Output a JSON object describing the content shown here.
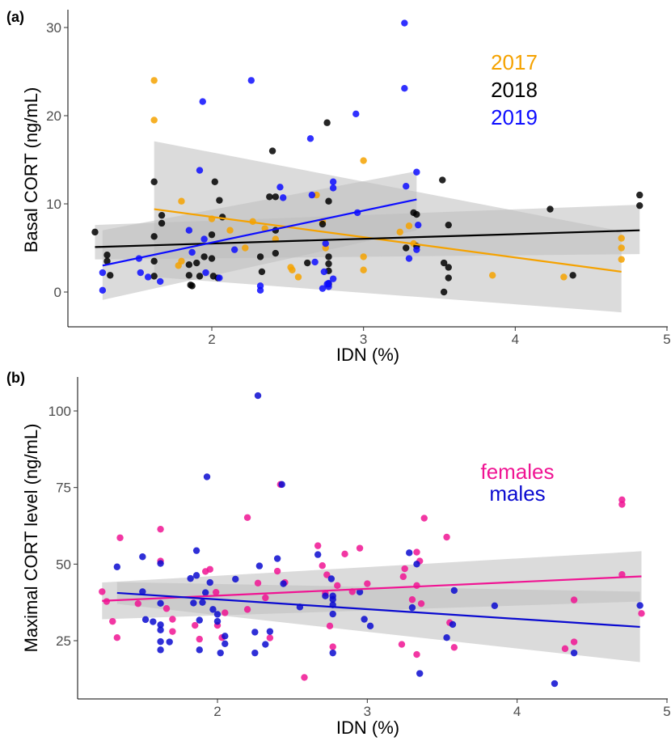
{
  "colors": {
    "y2017": "#f5a200",
    "y2018": "#000000",
    "y2019": "#0d0dff",
    "females": "#f01493",
    "males": "#0a0ad0",
    "ribbon": "#bdbdbd"
  },
  "chart_data": [
    {
      "type": "scatter",
      "panel_label": "(a)",
      "xlabel": "IDN (%)",
      "ylabel": "Basal CORT (ng/mL)",
      "xlim": [
        1.15,
        5.0
      ],
      "ylim": [
        -4,
        32
      ],
      "x_ticks": [
        2,
        3,
        4,
        5
      ],
      "y_ticks": [
        0,
        10,
        20,
        30
      ],
      "grid": false,
      "legend_position": "top-right",
      "series": [
        {
          "name": "2017",
          "color_key": "y2017",
          "points": [
            [
              1.62,
              24.0
            ],
            [
              1.62,
              19.5
            ],
            [
              1.8,
              10.3
            ],
            [
              1.8,
              3.5
            ],
            [
              1.78,
              3.0
            ],
            [
              2.0,
              8.3
            ],
            [
              2.12,
              7.0
            ],
            [
              2.22,
              5.0
            ],
            [
              2.27,
              8.0
            ],
            [
              2.35,
              7.2
            ],
            [
              2.42,
              6.0
            ],
            [
              2.52,
              2.8
            ],
            [
              2.53,
              2.5
            ],
            [
              2.57,
              1.7
            ],
            [
              2.69,
              11.0
            ],
            [
              2.73,
              8.0
            ],
            [
              2.75,
              5.0
            ],
            [
              3.0,
              14.9
            ],
            [
              3.0,
              4.0
            ],
            [
              3.0,
              2.5
            ],
            [
              3.24,
              6.8
            ],
            [
              3.3,
              7.5
            ],
            [
              3.33,
              5.5
            ],
            [
              3.85,
              1.9
            ],
            [
              4.32,
              1.7
            ],
            [
              4.7,
              6.1
            ],
            [
              4.7,
              5.0
            ],
            [
              4.7,
              3.7
            ]
          ],
          "fit": {
            "x0": 1.62,
            "y0": 9.4,
            "x1": 4.7,
            "y1": 2.3,
            "ci_lower0": 1.7,
            "ci_upper0": 17.1,
            "ci_lower1": -2.3,
            "ci_upper1": 6.9
          }
        },
        {
          "name": "2018",
          "color_key": "y2018",
          "points": [
            [
              1.23,
              6.8
            ],
            [
              1.31,
              4.2
            ],
            [
              1.31,
              3.5
            ],
            [
              1.33,
              1.9
            ],
            [
              1.62,
              12.5
            ],
            [
              1.62,
              6.3
            ],
            [
              1.62,
              3.5
            ],
            [
              1.62,
              1.8
            ],
            [
              1.67,
              8.7
            ],
            [
              1.67,
              7.8
            ],
            [
              1.85,
              3.1
            ],
            [
              1.85,
              1.9
            ],
            [
              1.86,
              0.8
            ],
            [
              1.87,
              0.7
            ],
            [
              1.9,
              3.3
            ],
            [
              1.92,
              1.8
            ],
            [
              1.95,
              4.0
            ],
            [
              2.0,
              6.5
            ],
            [
              2.0,
              3.8
            ],
            [
              2.01,
              1.8
            ],
            [
              2.02,
              12.5
            ],
            [
              2.04,
              1.6
            ],
            [
              2.05,
              10.4
            ],
            [
              2.07,
              8.5
            ],
            [
              2.32,
              4.0
            ],
            [
              2.33,
              2.3
            ],
            [
              2.38,
              10.8
            ],
            [
              2.4,
              16.0
            ],
            [
              2.42,
              10.8
            ],
            [
              2.42,
              7.0
            ],
            [
              2.42,
              4.4
            ],
            [
              2.63,
              3.3
            ],
            [
              2.73,
              7.7
            ],
            [
              2.76,
              19.2
            ],
            [
              2.77,
              10.3
            ],
            [
              2.77,
              4.0
            ],
            [
              2.77,
              3.2
            ],
            [
              2.77,
              2.4
            ],
            [
              2.77,
              0.9
            ],
            [
              3.28,
              5.0
            ],
            [
              3.33,
              9.0
            ],
            [
              3.35,
              8.8
            ],
            [
              3.35,
              5.2
            ],
            [
              3.52,
              12.7
            ],
            [
              3.53,
              3.3
            ],
            [
              3.53,
              0.0
            ],
            [
              3.56,
              7.6
            ],
            [
              3.56,
              2.8
            ],
            [
              3.56,
              1.6
            ],
            [
              4.23,
              9.4
            ],
            [
              4.38,
              1.9
            ],
            [
              4.82,
              11.0
            ],
            [
              4.82,
              9.8
            ]
          ],
          "fit": {
            "x0": 1.23,
            "y0": 5.1,
            "x1": 4.82,
            "y1": 7.0,
            "ci_lower0": 3.7,
            "ci_upper0": 7.6,
            "ci_lower1": 4.3,
            "ci_upper1": 9.9
          }
        },
        {
          "name": "2019",
          "color_key": "y2019",
          "points": [
            [
              1.28,
              2.2
            ],
            [
              1.28,
              0.2
            ],
            [
              1.52,
              3.8
            ],
            [
              1.53,
              2.2
            ],
            [
              1.58,
              1.7
            ],
            [
              1.66,
              1.2
            ],
            [
              1.85,
              7.0
            ],
            [
              1.87,
              4.5
            ],
            [
              1.92,
              13.8
            ],
            [
              1.94,
              21.6
            ],
            [
              1.95,
              6.0
            ],
            [
              1.96,
              2.2
            ],
            [
              2.05,
              1.6
            ],
            [
              2.15,
              4.8
            ],
            [
              2.26,
              24.0
            ],
            [
              2.32,
              0.7
            ],
            [
              2.32,
              0.2
            ],
            [
              2.45,
              11.9
            ],
            [
              2.47,
              10.7
            ],
            [
              2.65,
              17.4
            ],
            [
              2.66,
              11.0
            ],
            [
              2.68,
              3.4
            ],
            [
              2.73,
              0.4
            ],
            [
              2.74,
              2.3
            ],
            [
              2.76,
              0.9
            ],
            [
              2.77,
              0.6
            ],
            [
              2.77,
              1.0
            ],
            [
              2.8,
              1.5
            ],
            [
              2.8,
              12.5
            ],
            [
              2.8,
              11.8
            ],
            [
              2.95,
              20.2
            ],
            [
              2.96,
              9.0
            ],
            [
              3.27,
              30.5
            ],
            [
              3.27,
              23.1
            ],
            [
              3.28,
              12.0
            ],
            [
              3.3,
              3.8
            ],
            [
              3.35,
              13.6
            ],
            [
              3.35,
              4.8
            ],
            [
              3.36,
              7.6
            ],
            [
              2.75,
              5.5
            ]
          ],
          "fit": {
            "x0": 1.28,
            "y0": 3.0,
            "x1": 3.35,
            "y1": 10.5,
            "ci_lower0": -0.9,
            "ci_upper0": 7.0,
            "ci_lower1": 7.0,
            "ci_upper1": 13.7
          }
        }
      ]
    },
    {
      "type": "scatter",
      "panel_label": "(b)",
      "xlabel": "IDN (%)",
      "ylabel": "Maximal CORT level (ng/mL)",
      "xlim": [
        1.15,
        5.0
      ],
      "ylim": [
        7,
        109
      ],
      "x_ticks": [
        2,
        3,
        4,
        5
      ],
      "y_ticks": [
        25,
        50,
        75,
        100
      ],
      "grid": false,
      "legend_position": "top-right",
      "series": [
        {
          "name": "females",
          "color_key": "females",
          "points": [
            [
              1.23,
              41.0
            ],
            [
              1.26,
              37.8
            ],
            [
              1.3,
              31.3
            ],
            [
              1.33,
              26.0
            ],
            [
              1.35,
              58.6
            ],
            [
              1.47,
              37.1
            ],
            [
              1.62,
              61.4
            ],
            [
              1.62,
              51.0
            ],
            [
              1.66,
              35.5
            ],
            [
              1.7,
              32.0
            ],
            [
              1.7,
              28.0
            ],
            [
              1.85,
              30.0
            ],
            [
              1.88,
              25.5
            ],
            [
              1.92,
              47.6
            ],
            [
              1.95,
              48.3
            ],
            [
              1.99,
              40.8
            ],
            [
              2.0,
              30.0
            ],
            [
              2.03,
              26.0
            ],
            [
              2.05,
              34.1
            ],
            [
              2.2,
              65.2
            ],
            [
              2.2,
              35.2
            ],
            [
              2.27,
              43.8
            ],
            [
              2.32,
              39.0
            ],
            [
              2.35,
              25.9
            ],
            [
              2.4,
              47.7
            ],
            [
              2.42,
              76.0
            ],
            [
              2.45,
              44.0
            ],
            [
              2.58,
              13.0
            ],
            [
              2.67,
              56.0
            ],
            [
              2.7,
              49.5
            ],
            [
              2.72,
              40.5
            ],
            [
              2.73,
              46.5
            ],
            [
              2.75,
              29.8
            ],
            [
              2.77,
              23.0
            ],
            [
              2.8,
              43.0
            ],
            [
              2.85,
              53.3
            ],
            [
              2.9,
              41.0
            ],
            [
              2.95,
              55.2
            ],
            [
              3.0,
              43.6
            ],
            [
              3.23,
              23.8
            ],
            [
              3.24,
              45.9
            ],
            [
              3.25,
              48.5
            ],
            [
              3.3,
              38.4
            ],
            [
              3.33,
              53.9
            ],
            [
              3.33,
              43.0
            ],
            [
              3.35,
              51.0
            ],
            [
              3.36,
              37.1
            ],
            [
              3.38,
              65.0
            ],
            [
              3.33,
              20.5
            ],
            [
              3.53,
              58.8
            ],
            [
              3.55,
              30.9
            ],
            [
              3.58,
              22.8
            ],
            [
              4.32,
              22.4
            ],
            [
              4.38,
              38.3
            ],
            [
              4.38,
              24.6
            ],
            [
              4.7,
              71.0
            ],
            [
              4.7,
              69.5
            ],
            [
              4.7,
              46.6
            ],
            [
              4.83,
              33.9
            ]
          ],
          "fit": {
            "x0": 1.23,
            "y0": 38.0,
            "x1": 4.83,
            "y1": 46.0,
            "ci_lower0": 32.0,
            "ci_upper0": 44.0,
            "ci_lower1": 37.8,
            "ci_upper1": 54.2
          }
        },
        {
          "name": "males",
          "color_key": "males",
          "points": [
            [
              1.33,
              49.1
            ],
            [
              1.5,
              52.4
            ],
            [
              1.5,
              41.0
            ],
            [
              1.52,
              31.9
            ],
            [
              1.57,
              31.2
            ],
            [
              1.62,
              50.2
            ],
            [
              1.62,
              37.2
            ],
            [
              1.62,
              30.2
            ],
            [
              1.62,
              28.5
            ],
            [
              1.62,
              24.7
            ],
            [
              1.62,
              22.0
            ],
            [
              1.68,
              24.6
            ],
            [
              1.82,
              45.3
            ],
            [
              1.84,
              37.3
            ],
            [
              1.86,
              46.3
            ],
            [
              1.86,
              54.4
            ],
            [
              1.88,
              22.0
            ],
            [
              1.88,
              31.7
            ],
            [
              1.9,
              37.5
            ],
            [
              1.92,
              40.7
            ],
            [
              1.93,
              78.5
            ],
            [
              1.95,
              44.0
            ],
            [
              1.97,
              35.2
            ],
            [
              2.0,
              31.3
            ],
            [
              2.0,
              33.6
            ],
            [
              2.02,
              21.0
            ],
            [
              2.05,
              24.0
            ],
            [
              2.05,
              26.5
            ],
            [
              2.12,
              45.1
            ],
            [
              2.25,
              21.0
            ],
            [
              2.25,
              27.8
            ],
            [
              2.27,
              105.0
            ],
            [
              2.28,
              49.4
            ],
            [
              2.32,
              23.8
            ],
            [
              2.35,
              28.0
            ],
            [
              2.4,
              51.8
            ],
            [
              2.43,
              76.0
            ],
            [
              2.44,
              43.6
            ],
            [
              2.55,
              36.0
            ],
            [
              2.67,
              53.1
            ],
            [
              2.72,
              39.6
            ],
            [
              2.76,
              45.2
            ],
            [
              2.77,
              39.6
            ],
            [
              2.77,
              38.5
            ],
            [
              2.77,
              36.7
            ],
            [
              2.77,
              33.7
            ],
            [
              2.77,
              21.0
            ],
            [
              2.95,
              40.9
            ],
            [
              2.98,
              32.0
            ],
            [
              3.02,
              29.8
            ],
            [
              3.28,
              53.7
            ],
            [
              3.3,
              35.8
            ],
            [
              3.33,
              50.0
            ],
            [
              3.35,
              14.3
            ],
            [
              3.53,
              26.0
            ],
            [
              3.57,
              30.3
            ],
            [
              3.58,
              41.4
            ],
            [
              3.85,
              36.4
            ],
            [
              4.25,
              11.0
            ],
            [
              4.38,
              21.0
            ],
            [
              4.82,
              36.5
            ]
          ],
          "fit": {
            "x0": 1.33,
            "y0": 40.6,
            "x1": 4.82,
            "y1": 29.5,
            "ci_lower0": 37.0,
            "ci_upper0": 44.1,
            "ci_lower1": 18.0,
            "ci_upper1": 41.0
          }
        }
      ]
    }
  ]
}
